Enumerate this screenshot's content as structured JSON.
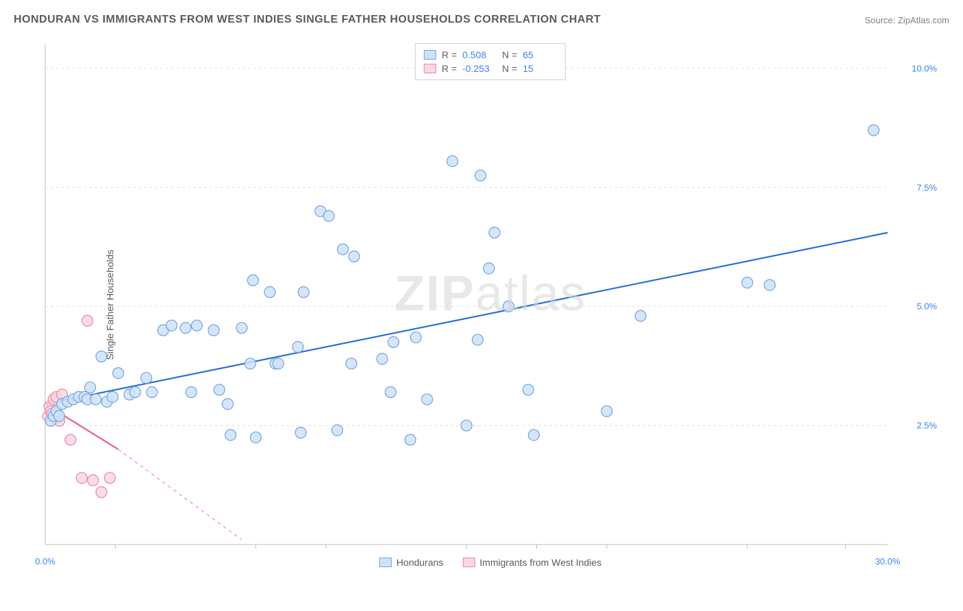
{
  "title": "HONDURAN VS IMMIGRANTS FROM WEST INDIES SINGLE FATHER HOUSEHOLDS CORRELATION CHART",
  "source": "Source: ZipAtlas.com",
  "y_axis_label": "Single Father Households",
  "watermark": "ZIPatlas",
  "chart": {
    "type": "scatter",
    "xlim": [
      0,
      30
    ],
    "ylim": [
      0,
      10.5
    ],
    "x_ticks": [
      0,
      30
    ],
    "x_tick_labels": [
      "0.0%",
      "30.0%"
    ],
    "y_ticks": [
      2.5,
      5.0,
      7.5,
      10.0
    ],
    "y_tick_labels": [
      "2.5%",
      "5.0%",
      "7.5%",
      "10.0%"
    ],
    "x_minor_ticks": [
      2.5,
      7.5,
      10,
      15,
      17.5,
      20,
      25,
      28.5
    ],
    "y_minor_ticks": [],
    "background_color": "#ffffff",
    "grid_color": "#e0e0e0",
    "axis_color": "#bfbfbf",
    "marker_radius": 8,
    "marker_stroke_width": 1.2,
    "series": [
      {
        "name": "Hondurans",
        "fill": "#cfe2f8",
        "stroke": "#6fa3e0",
        "line_color": "#2a6fd6",
        "line_width": 2.2,
        "r_value": "0.508",
        "n_value": "65",
        "trend": {
          "x1": 0,
          "y1": 2.95,
          "x2": 30,
          "y2": 6.55
        },
        "points": [
          [
            0.2,
            2.6
          ],
          [
            0.3,
            2.7
          ],
          [
            0.4,
            2.8
          ],
          [
            0.5,
            2.7
          ],
          [
            0.6,
            2.95
          ],
          [
            0.8,
            3.0
          ],
          [
            1.0,
            3.05
          ],
          [
            1.2,
            3.1
          ],
          [
            1.4,
            3.1
          ],
          [
            1.5,
            3.05
          ],
          [
            1.6,
            3.3
          ],
          [
            1.8,
            3.05
          ],
          [
            2.0,
            3.95
          ],
          [
            2.2,
            3.0
          ],
          [
            2.4,
            3.1
          ],
          [
            2.6,
            3.6
          ],
          [
            3.0,
            3.15
          ],
          [
            3.2,
            3.2
          ],
          [
            3.6,
            3.5
          ],
          [
            3.8,
            3.2
          ],
          [
            4.2,
            4.5
          ],
          [
            4.5,
            4.6
          ],
          [
            5.0,
            4.55
          ],
          [
            5.2,
            3.2
          ],
          [
            5.4,
            4.6
          ],
          [
            6.0,
            4.5
          ],
          [
            6.2,
            3.25
          ],
          [
            6.5,
            2.95
          ],
          [
            6.6,
            2.3
          ],
          [
            7.0,
            4.55
          ],
          [
            7.3,
            3.8
          ],
          [
            7.4,
            5.55
          ],
          [
            7.5,
            2.25
          ],
          [
            8.0,
            5.3
          ],
          [
            8.2,
            3.8
          ],
          [
            8.3,
            3.8
          ],
          [
            9.0,
            4.15
          ],
          [
            9.1,
            2.35
          ],
          [
            9.2,
            5.3
          ],
          [
            9.8,
            7.0
          ],
          [
            10.1,
            6.9
          ],
          [
            10.4,
            2.4
          ],
          [
            10.6,
            6.2
          ],
          [
            10.9,
            3.8
          ],
          [
            11.0,
            6.05
          ],
          [
            12.0,
            3.9
          ],
          [
            12.3,
            3.2
          ],
          [
            12.4,
            4.25
          ],
          [
            13.0,
            2.2
          ],
          [
            13.2,
            4.35
          ],
          [
            13.6,
            3.05
          ],
          [
            14.5,
            8.05
          ],
          [
            15.0,
            2.5
          ],
          [
            15.4,
            4.3
          ],
          [
            15.5,
            7.75
          ],
          [
            15.8,
            5.8
          ],
          [
            16.5,
            5.0
          ],
          [
            16.0,
            6.55
          ],
          [
            17.2,
            3.25
          ],
          [
            17.4,
            2.3
          ],
          [
            20.0,
            2.8
          ],
          [
            21.2,
            4.8
          ],
          [
            25.0,
            5.5
          ],
          [
            25.8,
            5.45
          ],
          [
            29.5,
            8.7
          ]
        ]
      },
      {
        "name": "Immigrants from West Indies",
        "fill": "#fad7e1",
        "stroke": "#e787a7",
        "line_color": "#ea5f8a",
        "line_width": 2.2,
        "r_value": "-0.253",
        "n_value": "15",
        "trend_solid": {
          "x1": 0,
          "y1": 2.95,
          "x2": 2.6,
          "y2": 2.0
        },
        "trend_dashed": {
          "x1": 2.6,
          "y1": 2.0,
          "x2": 7.0,
          "y2": 0.1
        },
        "points": [
          [
            0.1,
            2.7
          ],
          [
            0.15,
            2.9
          ],
          [
            0.2,
            2.8
          ],
          [
            0.25,
            2.75
          ],
          [
            0.3,
            3.05
          ],
          [
            0.35,
            2.65
          ],
          [
            0.4,
            3.1
          ],
          [
            0.5,
            2.6
          ],
          [
            0.6,
            3.15
          ],
          [
            0.9,
            2.2
          ],
          [
            1.3,
            1.4
          ],
          [
            1.5,
            4.7
          ],
          [
            1.7,
            1.35
          ],
          [
            2.0,
            1.1
          ],
          [
            2.3,
            1.4
          ]
        ]
      }
    ]
  },
  "top_legend_rows": [
    {
      "swatch_fill": "#cfe2f8",
      "swatch_stroke": "#6fa3e0",
      "r_label": "R =",
      "r_val": "0.508",
      "n_label": "N =",
      "n_val": "65"
    },
    {
      "swatch_fill": "#fad7e1",
      "swatch_stroke": "#e787a7",
      "r_label": "R =",
      "r_val": "-0.253",
      "n_label": "N =",
      "n_val": "15"
    }
  ],
  "bottom_legend": [
    {
      "swatch_fill": "#cfe2f8",
      "swatch_stroke": "#6fa3e0",
      "label": "Hondurans"
    },
    {
      "swatch_fill": "#fad7e1",
      "swatch_stroke": "#e787a7",
      "label": "Immigrants from West Indies"
    }
  ]
}
